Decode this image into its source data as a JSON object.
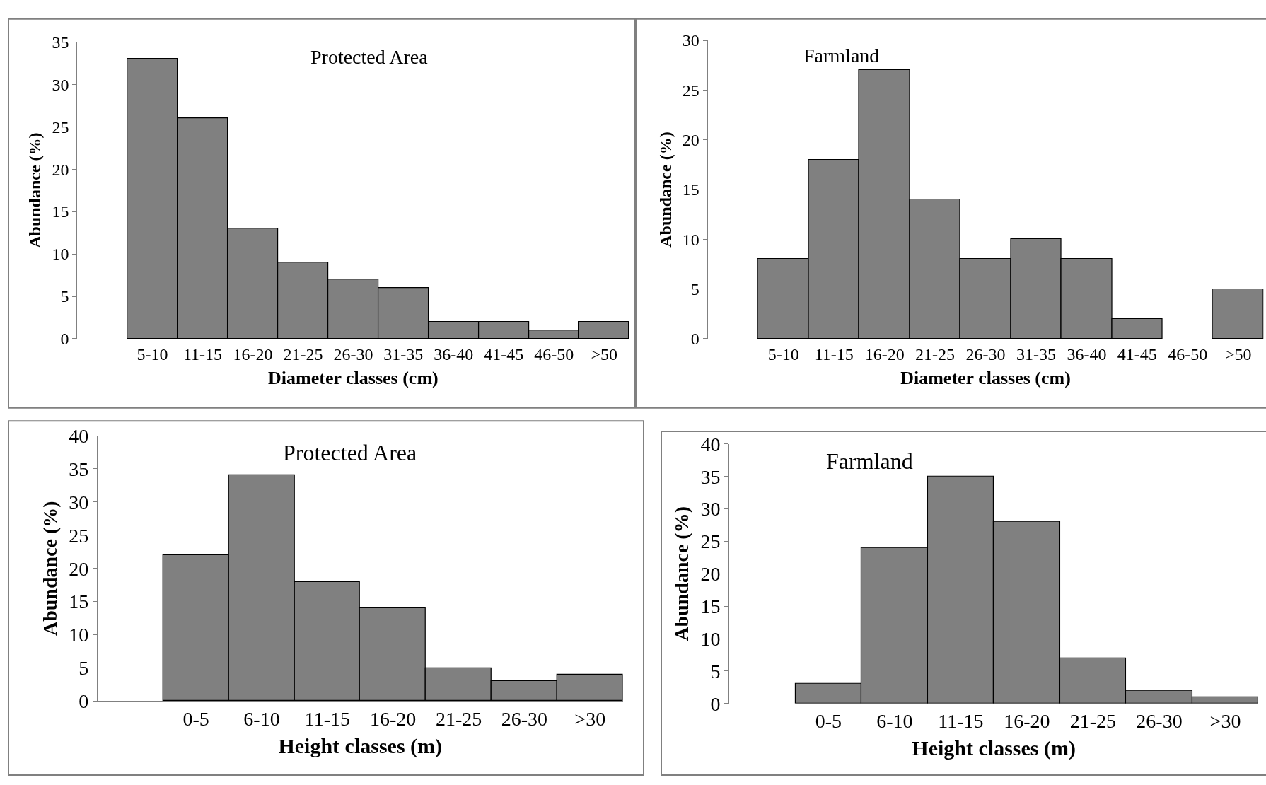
{
  "chart_data": [
    {
      "type": "bar",
      "title": "Protected Area",
      "xlabel": "Diameter classes (cm)",
      "ylabel": "Abundance (%)",
      "categories": [
        null,
        "5-10",
        "11-15",
        "16-20",
        "21-25",
        "26-30",
        "31-35",
        "36-40",
        "41-45",
        "46-50",
        ">50"
      ],
      "values": [
        null,
        33,
        26,
        13,
        9,
        7,
        6,
        2,
        2,
        1,
        2
      ],
      "color": "#808080",
      "ylim": [
        0,
        35
      ],
      "yticks": [
        0,
        5,
        10,
        15,
        20,
        25,
        30,
        35
      ]
    },
    {
      "type": "bar",
      "title": "Farmland",
      "xlabel": "Diameter classes (cm)",
      "ylabel": "Abundance (%)",
      "categories": [
        null,
        "5-10",
        "11-15",
        "16-20",
        "21-25",
        "26-30",
        "31-35",
        "36-40",
        "41-45",
        "46-50",
        ">50"
      ],
      "values": [
        null,
        8,
        18,
        27,
        14,
        8,
        10,
        8,
        2,
        null,
        5
      ],
      "color": "#808080",
      "ylim": [
        0,
        30
      ],
      "yticks": [
        0,
        5,
        10,
        15,
        20,
        25,
        30
      ]
    },
    {
      "type": "bar",
      "title": "Protected Area",
      "xlabel": "Height classes (m)",
      "ylabel": "Abundance (%)",
      "categories": [
        null,
        "0-5",
        "6-10",
        "11-15",
        "16-20",
        "21-25",
        "26-30",
        ">30"
      ],
      "values": [
        null,
        22,
        34,
        18,
        14,
        5,
        3,
        4
      ],
      "color": "#808080",
      "ylim": [
        0,
        40
      ],
      "yticks": [
        0,
        5,
        10,
        15,
        20,
        25,
        30,
        35,
        40
      ]
    },
    {
      "type": "bar",
      "title": "Farmland",
      "xlabel": "Height classes (m)",
      "ylabel": "Abundance (%)",
      "categories": [
        null,
        "0-5",
        "6-10",
        "11-15",
        "16-20",
        "21-25",
        "26-30",
        ">30"
      ],
      "values": [
        null,
        3,
        24,
        35,
        28,
        7,
        2,
        1
      ],
      "color": "#808080",
      "ylim": [
        0,
        40
      ],
      "yticks": [
        0,
        5,
        10,
        15,
        20,
        25,
        30,
        35,
        40
      ]
    }
  ]
}
